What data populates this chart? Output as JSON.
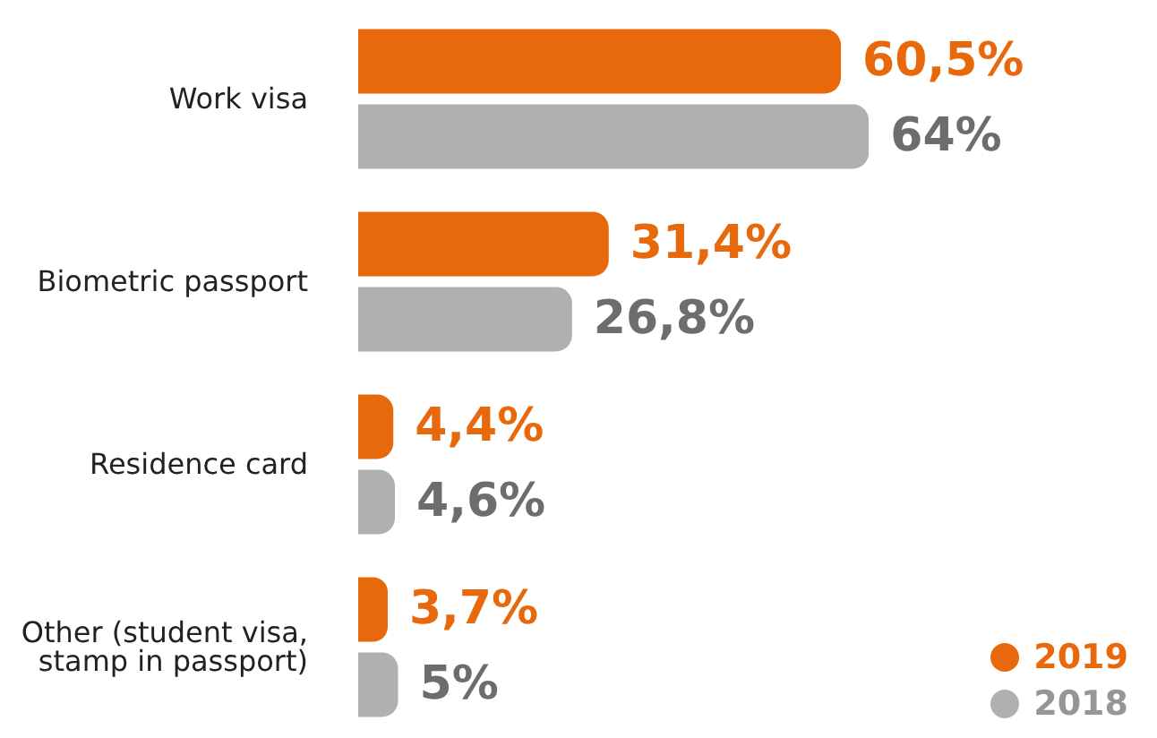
{
  "chart_data": {
    "type": "bar",
    "orientation": "horizontal",
    "categories": [
      "Work visa",
      "Biometric passport",
      "Residence card",
      "Other (student visa, stamp in passport)"
    ],
    "series": [
      {
        "name": "2019",
        "color": "#e8690b",
        "values": [
          60.5,
          31.4,
          4.4,
          3.7
        ],
        "value_labels": [
          "60,5%",
          "31,4%",
          "4,4%",
          "3,7%"
        ]
      },
      {
        "name": "2018",
        "color": "#b0b0b0",
        "values": [
          64,
          26.8,
          4.6,
          5
        ],
        "value_labels": [
          "64%",
          "26,8%",
          "4,6%",
          "5%"
        ]
      }
    ],
    "legend": "bottom right",
    "grid": false
  }
}
